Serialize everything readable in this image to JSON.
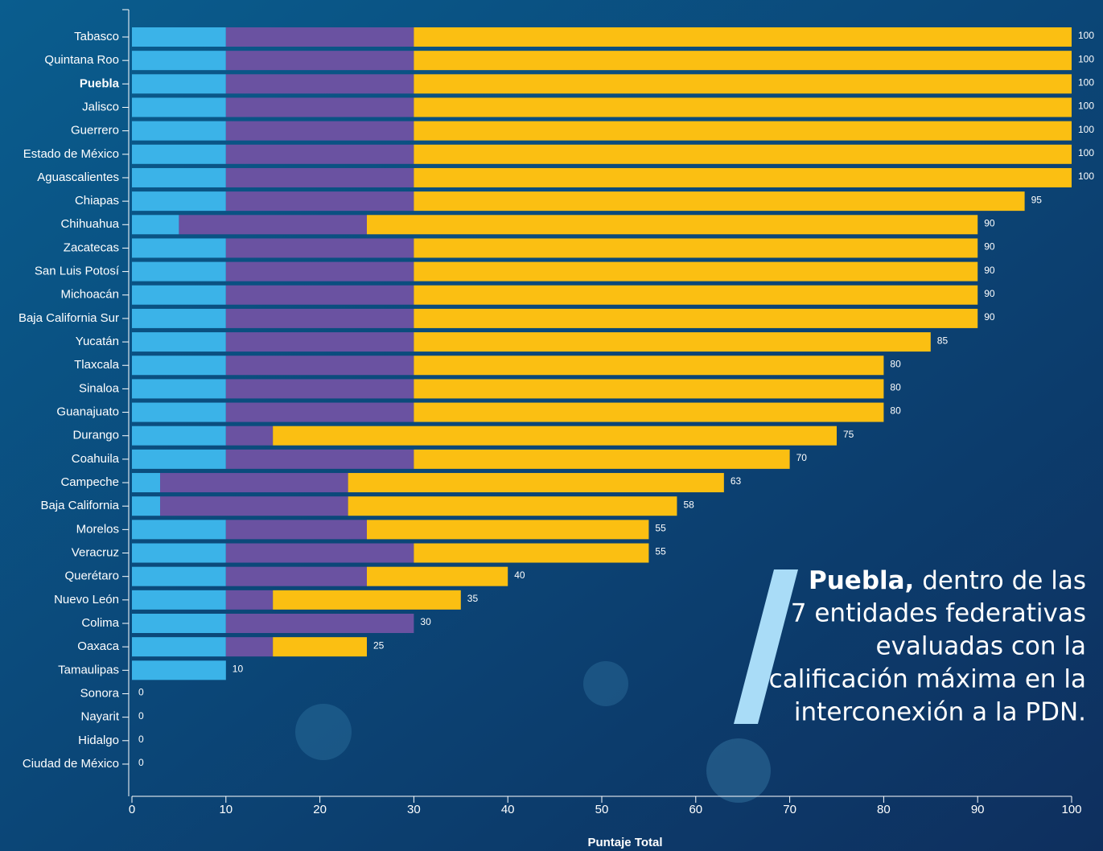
{
  "chart_data": {
    "type": "stacked-bar-horizontal",
    "categories": [
      "Tabasco",
      "Quintana Roo",
      "Puebla",
      "Jalisco",
      "Guerrero",
      "Estado de México",
      "Aguascalientes",
      "Chiapas",
      "Chihuahua",
      "Zacatecas",
      "San Luis Potosí",
      "Michoacán",
      "Baja California Sur",
      "Yucatán",
      "Tlaxcala",
      "Sinaloa",
      "Guanajuato",
      "Durango",
      "Coahuila",
      "Campeche",
      "Baja California",
      "Morelos",
      "Veracruz",
      "Querétaro",
      "Nuevo León",
      "Colima",
      "Oaxaca",
      "Tamaulipas",
      "Sonora",
      "Nayarit",
      "Hidalgo",
      "Ciudad de México"
    ],
    "highlight_index": 2,
    "series": [
      {
        "color": "#3bb3e8",
        "values": [
          10,
          10,
          10,
          10,
          10,
          10,
          10,
          10,
          5,
          10,
          10,
          10,
          10,
          10,
          10,
          10,
          10,
          10,
          10,
          3,
          3,
          10,
          10,
          10,
          10,
          10,
          10,
          10,
          0,
          0,
          0,
          0
        ]
      },
      {
        "color": "#6a52a1",
        "values": [
          20,
          20,
          20,
          20,
          20,
          20,
          20,
          20,
          20,
          20,
          20,
          20,
          20,
          20,
          20,
          20,
          20,
          5,
          20,
          20,
          20,
          15,
          20,
          15,
          5,
          20,
          5,
          0,
          0,
          0,
          0,
          0
        ]
      },
      {
        "color": "#fbbf12",
        "values": [
          70,
          70,
          70,
          70,
          70,
          70,
          70,
          65,
          65,
          60,
          60,
          60,
          60,
          55,
          50,
          50,
          50,
          60,
          40,
          40,
          35,
          30,
          25,
          15,
          20,
          0,
          10,
          0,
          0,
          0,
          0,
          0
        ]
      }
    ],
    "totals": [
      100,
      100,
      100,
      100,
      100,
      100,
      100,
      95,
      90,
      90,
      90,
      90,
      90,
      85,
      80,
      80,
      80,
      75,
      70,
      63,
      58,
      55,
      55,
      40,
      35,
      30,
      25,
      10,
      0,
      0,
      0,
      0
    ],
    "xlim": [
      0,
      100
    ],
    "xticks": [
      0,
      10,
      20,
      30,
      40,
      50,
      60,
      70,
      80,
      90,
      100
    ],
    "xlabel": "Puntaje Total",
    "annotation": {
      "bold": "Puebla,",
      "lines": [
        "dentro de las",
        "7 entidades federativas",
        "evaluadas con la",
        "calificación máxima en la",
        "interconexión a la PDN."
      ]
    }
  }
}
